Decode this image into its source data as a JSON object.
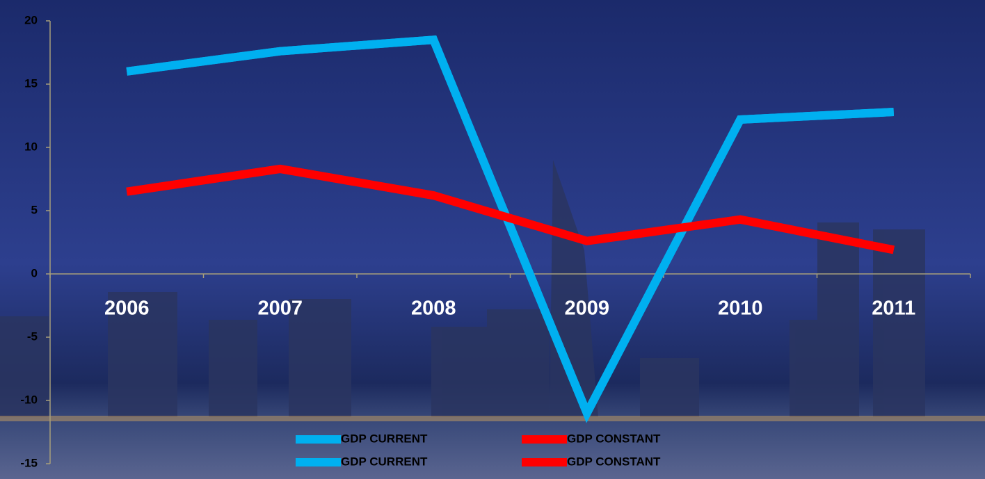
{
  "chart_data": {
    "type": "line",
    "categories": [
      "2006",
      "2007",
      "2008",
      "2009",
      "2010",
      "2011"
    ],
    "series": [
      {
        "name": "GDP CURRENT",
        "color": "#00b0f0",
        "values": [
          16.0,
          17.6,
          18.5,
          -11.0,
          12.2,
          12.8
        ]
      },
      {
        "name": "GDP CONSTANT",
        "color": "#ff0000",
        "values": [
          6.5,
          8.3,
          6.2,
          2.6,
          4.3,
          1.9
        ]
      },
      {
        "name": "GDP CURRENT",
        "color": "#00b0f0",
        "values": [
          16.0,
          17.6,
          18.5,
          -11.0,
          12.2,
          12.8
        ]
      },
      {
        "name": "GDP CONSTANT",
        "color": "#ff0000",
        "values": [
          6.5,
          8.3,
          6.2,
          2.6,
          4.3,
          1.9
        ]
      }
    ],
    "ylim": [
      -15,
      20
    ],
    "yticks": [
      -15,
      -10,
      -5,
      0,
      5,
      10,
      15,
      20
    ]
  }
}
